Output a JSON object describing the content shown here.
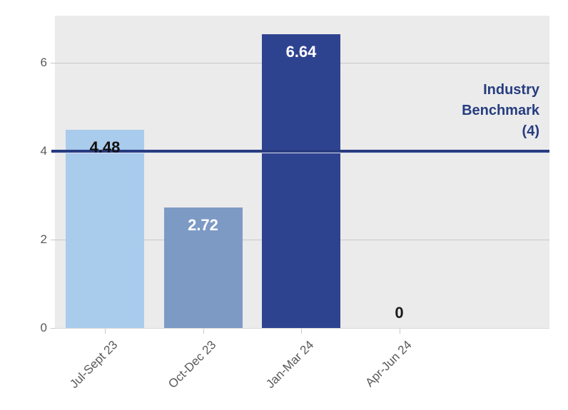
{
  "chart_data": {
    "type": "bar",
    "title": "",
    "xlabel": "",
    "ylabel": "",
    "categories": [
      "Jul-Sept 23",
      "Oct-Dec 23",
      "Jan-Mar 24",
      "Apr-Jun 24"
    ],
    "values": [
      4.48,
      2.72,
      6.64,
      0
    ],
    "value_labels": [
      "4.48",
      "2.72",
      "6.64",
      "0"
    ],
    "bar_colors": [
      "#a9cbec",
      "#7d9ac5",
      "#2e4390",
      "#a9cbec"
    ],
    "value_label_colors": [
      "#111111",
      "#ffffff",
      "#ffffff",
      "#1a1a1a"
    ],
    "y_ticks": [
      "0",
      "2",
      "4",
      "6"
    ],
    "ylim": [
      0,
      7.06
    ],
    "grid": true,
    "legend_position": "none",
    "benchmark": {
      "value": 4,
      "label_lines": [
        "Industry",
        "Benchmark",
        "(4)"
      ]
    },
    "colors": {
      "plot_bg": "#ebebeb",
      "gridline": "#c6c8ca",
      "axis_line": "#d9d9d9",
      "tick_mark": "#c9c9c9",
      "axis_tick_label": "#595959",
      "x_axis_label": "#595959",
      "benchmark_line": "#283c80",
      "benchmark_label": "#263d80"
    }
  }
}
